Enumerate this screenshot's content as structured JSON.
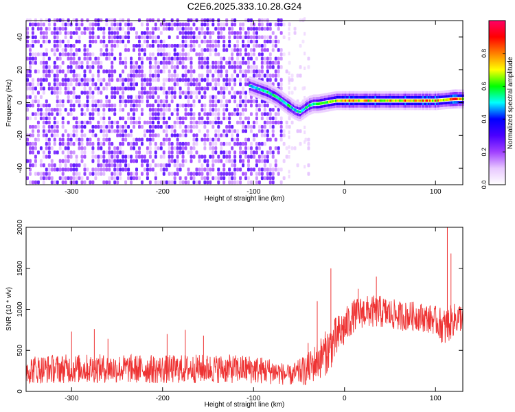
{
  "title": "C2E6.2025.333.10.28.G24",
  "chart_data": [
    {
      "type": "heatmap",
      "xlabel": "Height of straight line (km)",
      "ylabel": "Frequency (Hz)",
      "xlim": [
        -350,
        130
      ],
      "ylim": [
        -50,
        50
      ],
      "xticks": [
        -300,
        -200,
        -100,
        0,
        100
      ],
      "yticks": [
        -40,
        -20,
        0,
        20,
        40
      ],
      "colorbar": {
        "label": "Normalized spectral amplitude",
        "range": [
          0.0,
          1.0
        ],
        "ticks": [
          0.0,
          0.2,
          0.4,
          0.6,
          0.8
        ],
        "tick_labels": [
          "0.0",
          "0.2",
          "0.4",
          "0.6",
          "0.8"
        ],
        "colors": [
          "#ffffff",
          "#e8c8ff",
          "#a040ff",
          "#4a00ff",
          "#0000ff",
          "#00ffff",
          "#00ff00",
          "#ffff00",
          "#ff8000",
          "#ff0000",
          "#ff0066"
        ]
      },
      "signal_trace": {
        "x": [
          -105,
          -95,
          -85,
          -75,
          -65,
          -55,
          -50,
          -45,
          -40,
          -35,
          -30,
          -20,
          -10,
          0,
          20,
          40,
          60,
          80,
          100,
          120,
          130
        ],
        "y": [
          10,
          8,
          6,
          3,
          -1,
          -5,
          -6,
          -4,
          -2,
          -1,
          -1,
          0,
          1,
          1,
          1,
          1,
          1,
          1,
          1,
          2,
          2
        ]
      },
      "noise_region": {
        "x": [
          -350,
          -70
        ],
        "y": [
          -50,
          50
        ]
      },
      "grid": false
    },
    {
      "type": "line",
      "xlabel": "Height of straight line (km)",
      "ylabel": "SNR (10 * v/v)",
      "xlim": [
        -350,
        130
      ],
      "ylim": [
        0,
        2000
      ],
      "xticks": [
        -300,
        -200,
        -100,
        0,
        100
      ],
      "yticks": [
        0,
        500,
        1000,
        1500,
        2000
      ],
      "color": "#ee3333",
      "grid": false,
      "envelope": {
        "x": [
          -350,
          -300,
          -250,
          -200,
          -150,
          -100,
          -80,
          -60,
          -40,
          -30,
          -20,
          -10,
          0,
          10,
          20,
          30,
          40,
          60,
          80,
          100,
          110,
          120,
          130
        ],
        "baseline": [
          250,
          260,
          260,
          250,
          260,
          250,
          230,
          180,
          250,
          350,
          450,
          600,
          750,
          900,
          950,
          950,
          950,
          900,
          900,
          850,
          750,
          850,
          900
        ],
        "spread": [
          220,
          220,
          220,
          220,
          220,
          220,
          200,
          150,
          250,
          300,
          350,
          350,
          300,
          250,
          250,
          250,
          250,
          230,
          220,
          220,
          300,
          250,
          220
        ]
      },
      "spikes": [
        {
          "x": -300,
          "y": 730
        },
        {
          "x": -275,
          "y": 760
        },
        {
          "x": -260,
          "y": 640
        },
        {
          "x": -195,
          "y": 700
        },
        {
          "x": -175,
          "y": 750
        },
        {
          "x": -155,
          "y": 680
        },
        {
          "x": -40,
          "y": 590
        },
        {
          "x": -30,
          "y": 1100
        },
        {
          "x": -15,
          "y": 1500
        },
        {
          "x": 15,
          "y": 1250
        },
        {
          "x": 35,
          "y": 1400
        },
        {
          "x": 113,
          "y": 2000
        },
        {
          "x": 117,
          "y": 1680
        }
      ]
    }
  ]
}
